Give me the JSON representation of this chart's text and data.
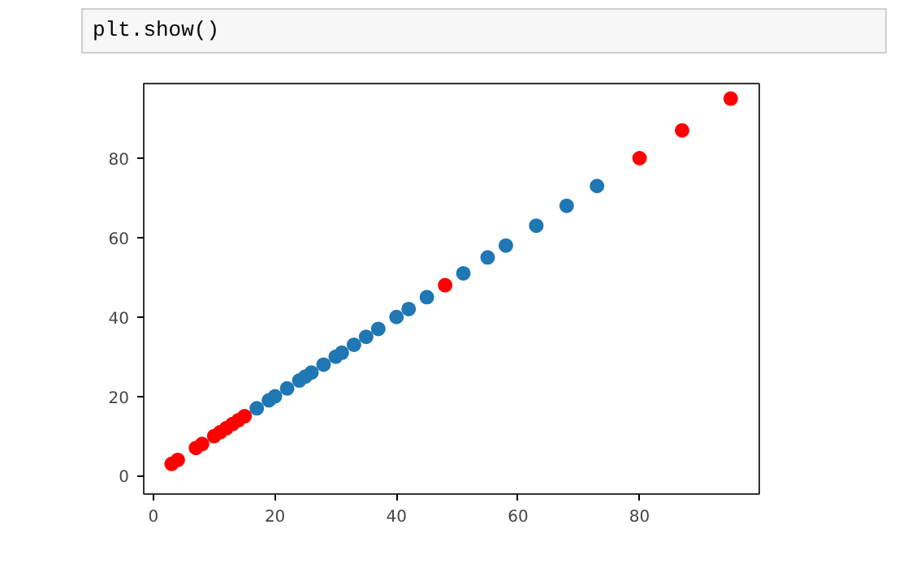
{
  "chart_data": {
    "type": "scatter",
    "annotations": [
      "plt.show()"
    ],
    "xlim": [
      -1.6,
      99.7
    ],
    "ylim": [
      -4.6,
      98.8
    ],
    "xticks": [
      0,
      20,
      40,
      60,
      80
    ],
    "yticks": [
      0,
      20,
      40,
      60,
      80
    ],
    "grid": false,
    "marker": "circle",
    "series": [
      {
        "color": "#1f77b4",
        "x": [
          17,
          19,
          20,
          22,
          24,
          25,
          26,
          28,
          30,
          31,
          33,
          35,
          37,
          40,
          42,
          45,
          51,
          55,
          58,
          63,
          68,
          73
        ],
        "values": [
          17,
          19,
          20,
          22,
          24,
          25,
          26,
          28,
          30,
          31,
          33,
          35,
          37,
          40,
          42,
          45,
          51,
          55,
          58,
          63,
          68,
          73
        ]
      },
      {
        "color": "#ff0000",
        "x": [
          3,
          4,
          7,
          8,
          10,
          11,
          12,
          13,
          14,
          15,
          48,
          80,
          87,
          95
        ],
        "values": [
          3,
          4,
          7,
          8,
          10,
          11,
          12,
          13,
          14,
          15,
          48,
          80,
          87,
          95
        ]
      }
    ]
  }
}
